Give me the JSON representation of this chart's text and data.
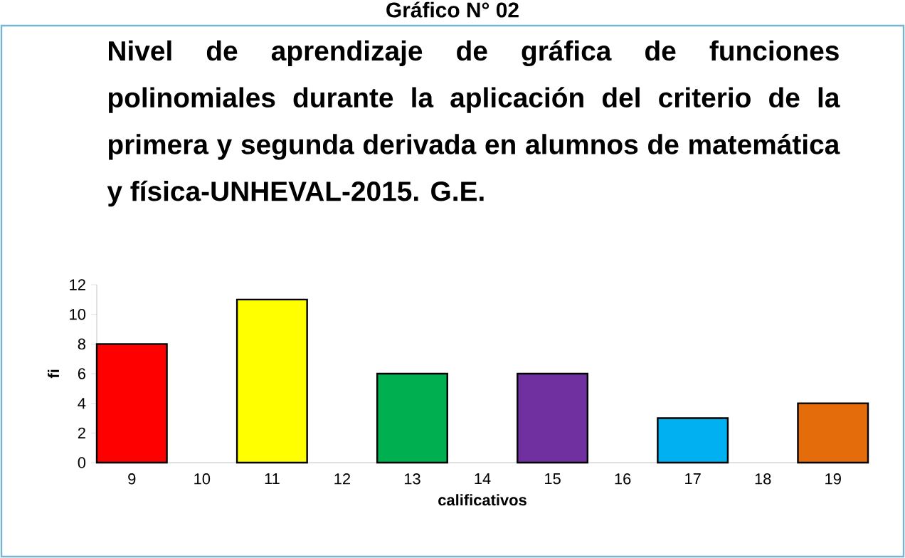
{
  "chart_data": {
    "type": "bar",
    "title": "Nivel de aprendizaje de gráfica de funciones polinomiales durante la aplicación del criterio de la primera y segunda derivada en alumnos de matemática y física-UNHEVAL-2015. G.E.",
    "annotations": [
      "Gráfico N° 02"
    ],
    "xlabel": "calificativos",
    "ylabel": "fi",
    "categories": [
      "9",
      "10",
      "11",
      "12",
      "13",
      "14",
      "15",
      "16",
      "17",
      "18",
      "19"
    ],
    "values": [
      8,
      0,
      11,
      0,
      6,
      0,
      6,
      0,
      3,
      0,
      4
    ],
    "colors": [
      "#ff0000",
      null,
      "#ffff00",
      null,
      "#00b050",
      null,
      "#7030a0",
      null,
      "#00b0f0",
      null,
      "#e46c0a"
    ],
    "ylim": [
      0,
      12
    ],
    "yticks": [
      0,
      2,
      4,
      6,
      8,
      10,
      12
    ],
    "grid": false
  }
}
